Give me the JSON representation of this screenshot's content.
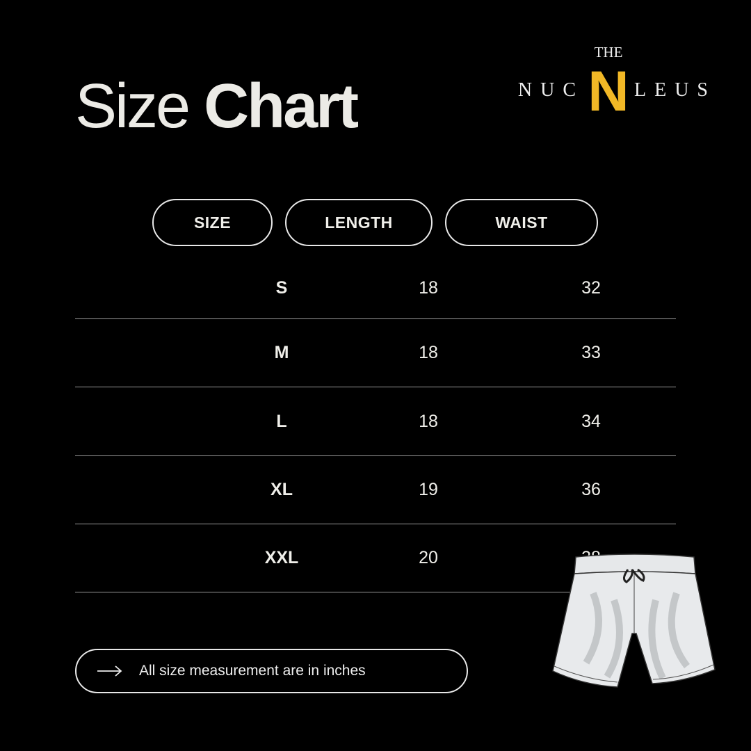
{
  "title": {
    "light": "Size",
    "bold": "Chart"
  },
  "logo": {
    "top": "THE",
    "letter": "N",
    "word": "NUCLEUS",
    "accent_color": "#f2b826"
  },
  "table": {
    "headers": [
      "SIZE",
      "LENGTH",
      "WAIST"
    ],
    "rows": [
      {
        "size": "S",
        "length": "18",
        "waist": "32"
      },
      {
        "size": "M",
        "length": "18",
        "waist": "33"
      },
      {
        "size": "L",
        "length": "18",
        "waist": "34"
      },
      {
        "size": "XL",
        "length": "19",
        "waist": "36"
      },
      {
        "size": "XXL",
        "length": "20",
        "waist": "38"
      }
    ]
  },
  "note": {
    "icon": "arrow-right-icon",
    "text": "All size measurement are in inches"
  },
  "illustration": "shorts-icon"
}
